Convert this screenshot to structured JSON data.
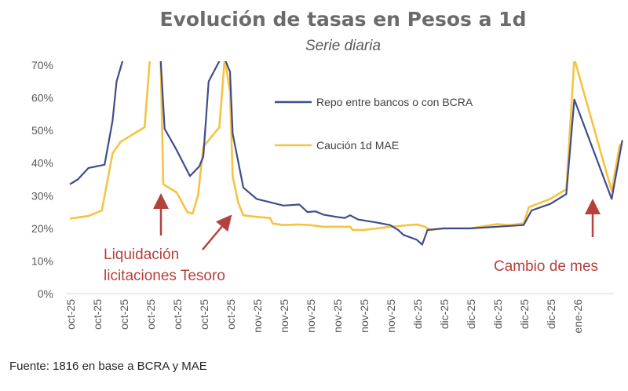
{
  "chart_data": {
    "type": "line",
    "title": "Evolución de tasas en Pesos a 1d",
    "subtitle": "Serie diaria",
    "ylim": [
      0,
      70
    ],
    "yticks": [
      "0%",
      "10%",
      "20%",
      "30%",
      "40%",
      "50%",
      "60%",
      "70%"
    ],
    "xticks": [
      "oct-25",
      "oct-25",
      "oct-25",
      "oct-25",
      "oct-25",
      "oct-25",
      "oct-25",
      "nov-25",
      "nov-25",
      "nov-25",
      "nov-25",
      "nov-25",
      "nov-25",
      "dic-25",
      "dic-25",
      "dic-25",
      "dic-25",
      "dic-25",
      "dic-25",
      "ene-26"
    ],
    "grid": false,
    "legend_position": "top-right",
    "series": [
      {
        "name": "Repo entre bancos o con BCRA",
        "color": "#3f4d8a",
        "points": [
          [
            0,
            33.5
          ],
          [
            0.3,
            35
          ],
          [
            0.7,
            38.5
          ],
          [
            1.3,
            39.5
          ],
          [
            1.6,
            53
          ],
          [
            1.75,
            65
          ],
          [
            2.0,
            72
          ],
          [
            2.7,
            72
          ],
          [
            3.4,
            72
          ],
          [
            3.55,
            50.5
          ],
          [
            4.0,
            44
          ],
          [
            4.5,
            36
          ],
          [
            4.85,
            39
          ],
          [
            5.0,
            42
          ],
          [
            5.2,
            65
          ],
          [
            5.65,
            72
          ],
          [
            5.8,
            72
          ],
          [
            6.0,
            68
          ],
          [
            6.1,
            49
          ],
          [
            6.5,
            32.5
          ],
          [
            7.0,
            29
          ],
          [
            7.5,
            28
          ],
          [
            8.0,
            27
          ],
          [
            8.6,
            27.3
          ],
          [
            8.9,
            25
          ],
          [
            9.2,
            25.2
          ],
          [
            9.5,
            24.2
          ],
          [
            10.0,
            23.5
          ],
          [
            10.3,
            23.2
          ],
          [
            10.5,
            24
          ],
          [
            10.8,
            22.7
          ],
          [
            11.5,
            21.8
          ],
          [
            12.0,
            21
          ],
          [
            12.3,
            19.5
          ],
          [
            12.5,
            18
          ],
          [
            13.0,
            16.5
          ],
          [
            13.2,
            15
          ],
          [
            13.4,
            19.5
          ],
          [
            14.0,
            20
          ],
          [
            15.0,
            20
          ],
          [
            16.0,
            20.5
          ],
          [
            17.0,
            21
          ],
          [
            17.3,
            25.5
          ],
          [
            18.0,
            27.5
          ],
          [
            18.6,
            30.5
          ],
          [
            18.9,
            59.5
          ],
          [
            20.3,
            29
          ],
          [
            20.7,
            47
          ]
        ]
      },
      {
        "name": "Caución 1d MAE",
        "color": "#f6c342",
        "points": [
          [
            0,
            23
          ],
          [
            0.7,
            23.8
          ],
          [
            1.2,
            25.5
          ],
          [
            1.6,
            43
          ],
          [
            1.9,
            46.5
          ],
          [
            2.8,
            51
          ],
          [
            3.0,
            72
          ],
          [
            3.4,
            72
          ],
          [
            3.5,
            33.5
          ],
          [
            4.0,
            31
          ],
          [
            4.4,
            25
          ],
          [
            4.6,
            24.5
          ],
          [
            4.8,
            30
          ],
          [
            5.0,
            45
          ],
          [
            5.6,
            51
          ],
          [
            5.8,
            72
          ],
          [
            6.0,
            62
          ],
          [
            6.1,
            36
          ],
          [
            6.3,
            28
          ],
          [
            6.5,
            24
          ],
          [
            7.0,
            23.5
          ],
          [
            7.5,
            23.2
          ],
          [
            7.6,
            21.5
          ],
          [
            8.0,
            21
          ],
          [
            8.5,
            21.2
          ],
          [
            9.0,
            21
          ],
          [
            9.5,
            20.5
          ],
          [
            10.0,
            20.5
          ],
          [
            10.5,
            20.5
          ],
          [
            10.6,
            19.5
          ],
          [
            11.0,
            19.5
          ],
          [
            11.5,
            20
          ],
          [
            12.0,
            20.5
          ],
          [
            13.0,
            21.2
          ],
          [
            13.3,
            20.5
          ],
          [
            13.5,
            19.5
          ],
          [
            14.0,
            20
          ],
          [
            15.0,
            20
          ],
          [
            16.0,
            21.3
          ],
          [
            16.5,
            21
          ],
          [
            17.0,
            21.5
          ],
          [
            17.2,
            26.5
          ],
          [
            18.0,
            29
          ],
          [
            18.6,
            32
          ],
          [
            18.9,
            72
          ],
          [
            20.3,
            31.5
          ],
          [
            20.6,
            45.5
          ],
          [
            20.7,
            46
          ]
        ]
      }
    ],
    "annotations": [
      {
        "label_lines": [
          "Liquidación",
          "licitaciones Tesoro"
        ]
      },
      {
        "label_lines": [
          "Cambio de mes"
        ]
      }
    ]
  },
  "footer": {
    "source": "Fuente: 1816 en base a BCRA y MAE"
  }
}
